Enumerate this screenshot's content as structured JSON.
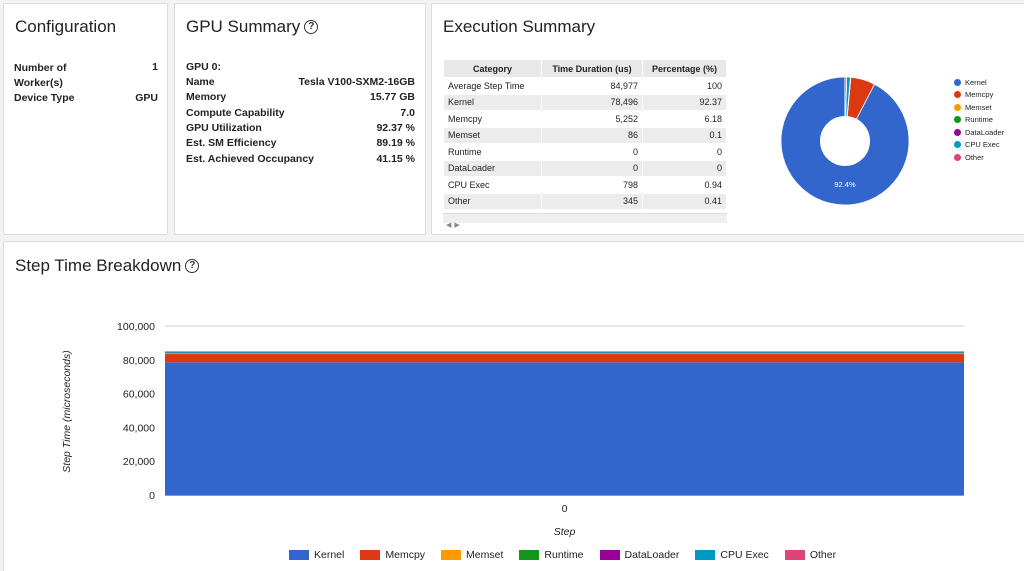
{
  "config": {
    "title": "Configuration",
    "rows": [
      {
        "label": "Number of Worker(s)",
        "value": "1"
      },
      {
        "label": "Device Type",
        "value": "GPU"
      }
    ]
  },
  "gpu": {
    "title": "GPU Summary",
    "header": "GPU 0:",
    "rows": [
      {
        "label": "Name",
        "value": "Tesla V100-SXM2-16GB"
      },
      {
        "label": "Memory",
        "value": "15.77 GB"
      },
      {
        "label": "Compute Capability",
        "value": "7.0"
      },
      {
        "label": "GPU Utilization",
        "value": "92.37 %"
      },
      {
        "label": "Est. SM Efficiency",
        "value": "89.19 %"
      },
      {
        "label": "Est. Achieved Occupancy",
        "value": "41.15 %"
      }
    ]
  },
  "exec": {
    "title": "Execution Summary",
    "columns": [
      "Category",
      "Time Duration (us)",
      "Percentage (%)"
    ],
    "rows": [
      [
        "Average Step Time",
        "84,977",
        "100"
      ],
      [
        "Kernel",
        "78,496",
        "92.37"
      ],
      [
        "Memcpy",
        "5,252",
        "6.18"
      ],
      [
        "Memset",
        "86",
        "0.1"
      ],
      [
        "Runtime",
        "0",
        "0"
      ],
      [
        "DataLoader",
        "0",
        "0"
      ],
      [
        "CPU Exec",
        "798",
        "0.94"
      ],
      [
        "Other",
        "345",
        "0.41"
      ]
    ],
    "pie_label": "92.4%"
  },
  "step": {
    "title": "Step Time Breakdown"
  },
  "colors": {
    "Kernel": "#3366cc",
    "Memcpy": "#dc3912",
    "Memset": "#ff9900",
    "Runtime": "#109618",
    "DataLoader": "#990099",
    "CPU Exec": "#0099c6",
    "Other": "#dd4477"
  },
  "chart_data": [
    {
      "type": "pie",
      "categories": [
        "Kernel",
        "Memcpy",
        "Memset",
        "Runtime",
        "DataLoader",
        "CPU Exec",
        "Other"
      ],
      "values": [
        92.37,
        6.18,
        0.1,
        0,
        0,
        0.94,
        0.41
      ],
      "legend": "right",
      "donut": true
    },
    {
      "type": "area",
      "x": [
        0
      ],
      "xlabel": "Step",
      "ylabel": "Step Time (microseconds)",
      "ylim": [
        0,
        100000
      ],
      "yticks": [
        "0",
        "20,000",
        "40,000",
        "60,000",
        "80,000",
        "100,000"
      ],
      "xticks": [
        "0"
      ],
      "stacked": true,
      "series": [
        {
          "name": "Kernel",
          "values": [
            78496
          ]
        },
        {
          "name": "Memcpy",
          "values": [
            5252
          ]
        },
        {
          "name": "Memset",
          "values": [
            86
          ]
        },
        {
          "name": "Runtime",
          "values": [
            0
          ]
        },
        {
          "name": "DataLoader",
          "values": [
            0
          ]
        },
        {
          "name": "CPU Exec",
          "values": [
            798
          ]
        },
        {
          "name": "Other",
          "values": [
            345
          ]
        }
      ],
      "legend": "bottom",
      "grid": true
    }
  ]
}
